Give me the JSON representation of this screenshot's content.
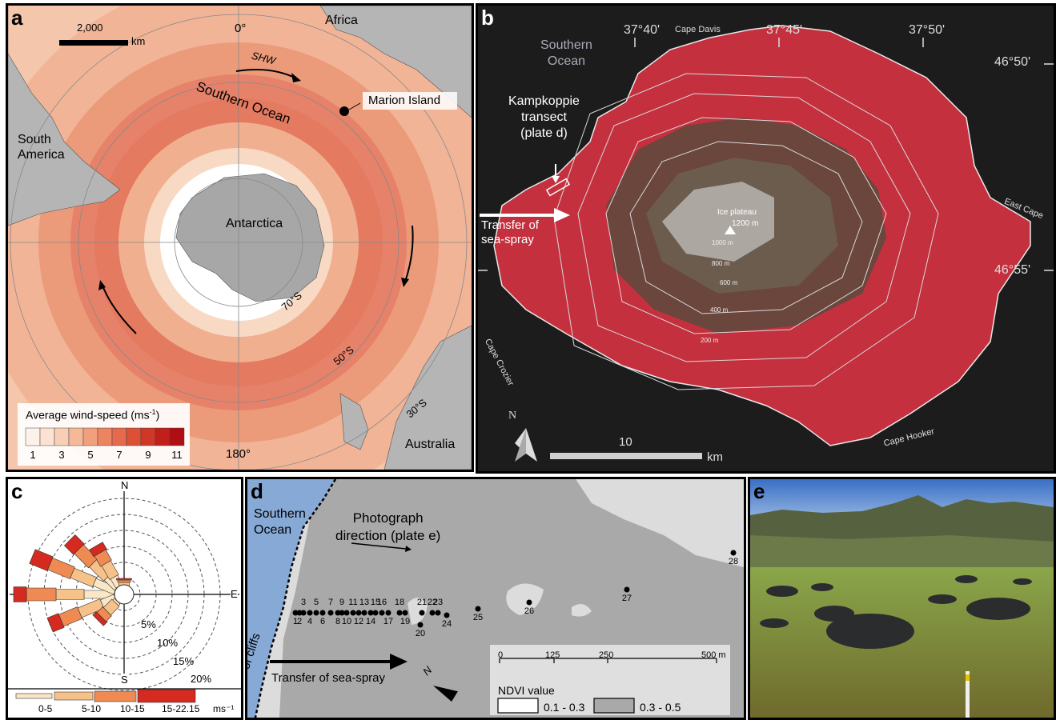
{
  "panel_a": {
    "label": "a",
    "scale_bar_value": "2,000",
    "scale_bar_unit": "km",
    "meridian_top": "0°",
    "meridian_bottom": "180°",
    "lat_labels": [
      "70°S",
      "50°S",
      "30°S"
    ],
    "continents": [
      "Africa",
      "South America",
      "Antarctica",
      "Australia"
    ],
    "ocean_label": "Southern Ocean",
    "wind_label": "SHW",
    "marker_label": "Marion Island",
    "legend_title_pre": "Average wind-speed (ms",
    "legend_title_sup": "-1",
    "legend_title_post": ")",
    "legend_ticks": [
      "1",
      "3",
      "5",
      "7",
      "9",
      "11"
    ],
    "legend_colors": [
      "#fdf2e9",
      "#fbe2d2",
      "#f8cfb6",
      "#f5b998",
      "#f1a07c",
      "#ec8461",
      "#e56a4c",
      "#dc5036",
      "#cf3727",
      "#c01f1b",
      "#b00e14"
    ]
  },
  "panel_b": {
    "label": "b",
    "ocean_label": [
      "Southern",
      "Ocean"
    ],
    "lon_labels": [
      "37°40'",
      "37°45'",
      "37°50'"
    ],
    "lat_labels": [
      "46°50'",
      "46°55'"
    ],
    "place_labels": [
      "Cape Davis",
      "East Cape",
      "Cape Crozier",
      "Cape Hooker"
    ],
    "transect_label": [
      "Kampkoppie",
      "transect",
      "(plate d)"
    ],
    "spray_label": [
      "Transfer of",
      "sea-spray"
    ],
    "plateau_label": [
      "Ice plateau",
      "1200 m"
    ],
    "contours": [
      "1000 m",
      "800 m",
      "600 m",
      "400 m",
      "200 m"
    ],
    "north": "N",
    "scale_value": "10",
    "scale_unit": "km"
  },
  "panel_c": {
    "label": "c",
    "compass": [
      "N",
      "E",
      "S"
    ],
    "rings": [
      "5%",
      "10%",
      "15%",
      "20%"
    ],
    "legend_items": [
      "0-5",
      "5-10",
      "10-15",
      "15-22.15"
    ],
    "legend_unit": "ms⁻¹",
    "legend_colors": [
      "#fbe7c6",
      "#f6c28a",
      "#ee8a52",
      "#d42a1f"
    ]
  },
  "panel_d": {
    "label": "d",
    "ocean_label": [
      "Southern",
      "Ocean"
    ],
    "photo_label": [
      "Photograph",
      "direction (plate e)"
    ],
    "cliff_label": "Line of cliffs",
    "spray_label": "Transfer of sea-spray",
    "north": "N",
    "scale_ticks": [
      "0",
      "125",
      "250",
      "500 m"
    ],
    "legend_title": "NDVI value",
    "legend_items": [
      "0.1 - 0.3",
      "0.3 - 0.5"
    ],
    "sites": [
      "1",
      "2",
      "3",
      "4",
      "5",
      "6",
      "7",
      "8",
      "9",
      "10",
      "11",
      "12",
      "13",
      "14",
      "15",
      "16",
      "17",
      "18",
      "19",
      "20",
      "21",
      "22",
      "23",
      "24",
      "25",
      "26",
      "27",
      "28"
    ]
  },
  "panel_e": {
    "label": "e"
  }
}
